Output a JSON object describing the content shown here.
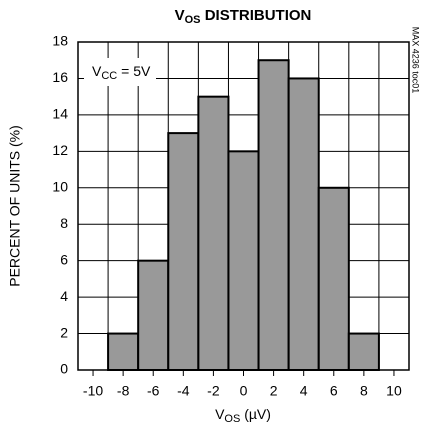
{
  "chart_data": {
    "type": "histogram",
    "title": [
      "V",
      "OS",
      " DISTRIBUTION"
    ],
    "x_label": [
      "V",
      "OS",
      " (µV)"
    ],
    "y_label": "PERCENT OF UNITS (%)",
    "annotation": [
      "V",
      "CC",
      " = 5V"
    ],
    "side_note": "MAX 4236 toc01",
    "bins": [
      -11,
      -9,
      -7,
      -5,
      -3,
      -1,
      1,
      3,
      5,
      7,
      9,
      11
    ],
    "values": [
      0,
      2,
      6,
      13,
      15,
      12,
      17,
      16,
      10,
      2,
      0
    ],
    "color": "#999999",
    "xlim": [
      -11,
      11
    ],
    "xticks": [
      -10,
      -8,
      -6,
      -4,
      -2,
      0,
      2,
      4,
      6,
      8,
      10
    ],
    "ylim": [
      0,
      18
    ],
    "yticks": [
      0,
      2,
      4,
      6,
      8,
      10,
      12,
      14,
      16,
      18
    ],
    "grid": true
  }
}
